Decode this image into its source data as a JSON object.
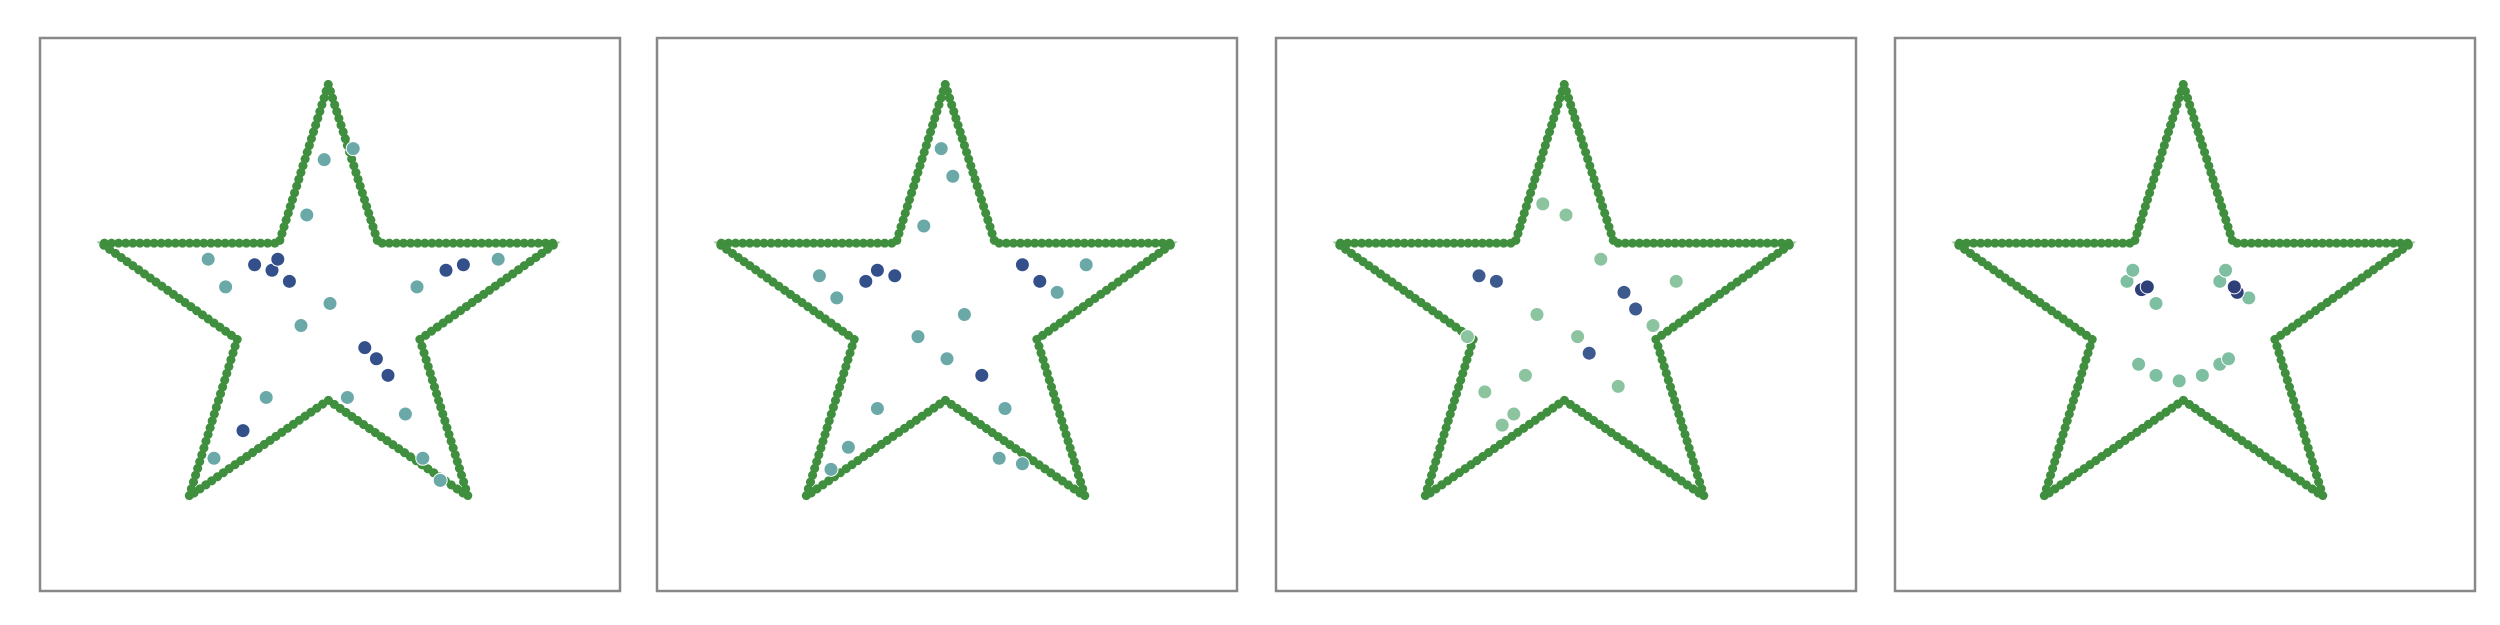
{
  "chart_data": [
    {
      "type": "scatter",
      "xlim": [
        0,
        10
      ],
      "ylim": [
        0,
        10
      ],
      "outline": {
        "color": "#3f8f3f",
        "x": [
          4.97,
          5.83,
          8.9,
          6.55,
          7.38,
          4.97,
          2.57,
          3.4,
          1.05,
          4.12,
          4.97
        ],
        "y": [
          9.16,
          6.29,
          6.29,
          4.55,
          1.71,
          3.45,
          1.71,
          4.55,
          6.29,
          6.29,
          9.16
        ]
      },
      "series": [
        {
          "color": "#34508a",
          "x": [
            4.0,
            3.7,
            4.3,
            5.8,
            6.0,
            5.6,
            7.3,
            7.0,
            3.5,
            4.1
          ],
          "y": [
            5.8,
            5.9,
            5.6,
            4.2,
            3.9,
            4.4,
            5.9,
            5.8,
            2.9,
            6.0
          ]
        },
        {
          "color": "#6ba8a8",
          "x": [
            3.2,
            4.6,
            4.9,
            5.0,
            6.3,
            6.6,
            7.9,
            6.5,
            3.0,
            3.9,
            4.5,
            2.9,
            5.3,
            6.9,
            5.4
          ],
          "y": [
            5.5,
            6.8,
            7.8,
            5.2,
            3.2,
            2.4,
            6.0,
            5.5,
            2.4,
            3.5,
            4.8,
            6.0,
            3.5,
            2.0,
            8.0
          ]
        }
      ]
    },
    {
      "type": "scatter",
      "xlim": [
        0,
        10
      ],
      "ylim": [
        0,
        10
      ],
      "outline": {
        "color": "#3f8f3f",
        "x": [
          4.97,
          5.83,
          8.9,
          6.55,
          7.38,
          4.97,
          2.57,
          3.4,
          1.05,
          4.12,
          4.97
        ],
        "y": [
          9.16,
          6.29,
          6.29,
          4.55,
          1.71,
          3.45,
          1.71,
          4.55,
          6.29,
          6.29,
          9.16
        ]
      },
      "series": [
        {
          "color": "#34508a",
          "x": [
            3.8,
            4.1,
            5.6,
            6.3,
            6.6,
            3.6
          ],
          "y": [
            5.8,
            5.7,
            3.9,
            5.9,
            5.6,
            5.6
          ]
        },
        {
          "color": "#6ba8a8",
          "x": [
            3.1,
            4.6,
            5.1,
            5.3,
            6.0,
            5.9,
            7.4,
            6.9,
            3.3,
            3.8,
            4.5,
            2.8,
            5.0,
            6.3,
            4.9,
            3.0
          ],
          "y": [
            5.3,
            6.6,
            7.5,
            5.0,
            3.3,
            2.4,
            5.9,
            5.4,
            2.6,
            3.3,
            4.6,
            5.7,
            4.2,
            2.3,
            8.0,
            2.2
          ]
        }
      ]
    },
    {
      "type": "scatter",
      "xlim": [
        0,
        10
      ],
      "ylim": [
        0,
        10
      ],
      "outline": {
        "color": "#3f8f3f",
        "x": [
          4.97,
          5.83,
          8.9,
          6.55,
          7.38,
          4.97,
          2.57,
          3.4,
          1.05,
          4.12,
          4.97
        ],
        "y": [
          9.16,
          6.29,
          6.29,
          4.55,
          1.71,
          3.45,
          1.71,
          4.55,
          6.29,
          6.29,
          9.16
        ]
      },
      "series": [
        {
          "color": "#3d5a8e",
          "x": [
            3.5,
            3.8,
            6.2,
            6.0,
            5.4
          ],
          "y": [
            5.7,
            5.6,
            5.1,
            5.4,
            4.3
          ]
        },
        {
          "color": "#8cc4a0",
          "x": [
            3.6,
            4.3,
            5.0,
            5.6,
            6.9,
            4.5,
            3.3,
            5.9,
            4.6,
            4.1,
            3.9,
            6.5,
            5.2
          ],
          "y": [
            3.6,
            3.9,
            6.8,
            6.0,
            5.6,
            5.0,
            4.6,
            3.7,
            7.0,
            3.2,
            3.0,
            4.8,
            4.6
          ]
        }
      ]
    },
    {
      "type": "scatter",
      "xlim": [
        0,
        10
      ],
      "ylim": [
        0,
        10
      ],
      "outline": {
        "color": "#3f8f3f",
        "x": [
          4.97,
          5.83,
          8.9,
          6.55,
          7.38,
          4.97,
          2.57,
          3.4,
          1.05,
          4.12,
          4.97
        ],
        "y": [
          9.16,
          6.29,
          6.29,
          4.55,
          1.71,
          3.45,
          1.71,
          4.55,
          6.29,
          6.29,
          9.16
        ]
      },
      "series": [
        {
          "color": "#2e3f7a",
          "x": [
            4.25,
            4.35,
            5.9,
            5.85
          ],
          "y": [
            5.45,
            5.5,
            5.4,
            5.5
          ]
        },
        {
          "color": "#7dbfa0",
          "x": [
            4.0,
            4.1,
            4.5,
            5.6,
            5.7,
            6.1,
            4.2,
            4.5,
            4.9,
            5.3,
            5.6,
            5.75
          ],
          "y": [
            5.6,
            5.8,
            5.2,
            5.6,
            5.8,
            5.3,
            4.1,
            3.9,
            3.8,
            3.9,
            4.1,
            4.2
          ]
        }
      ]
    }
  ]
}
